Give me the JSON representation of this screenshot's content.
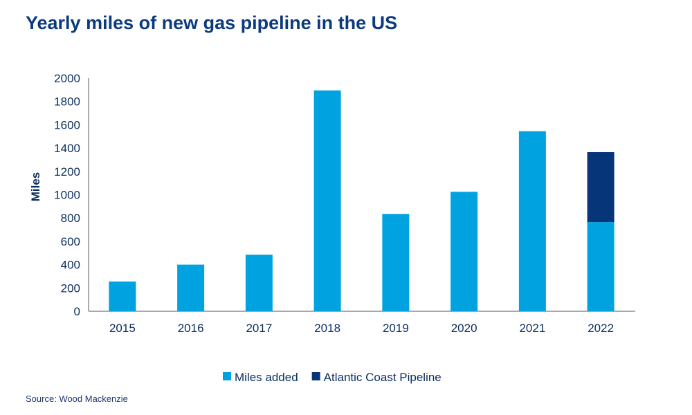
{
  "title": "Yearly miles of new gas pipeline in the US",
  "source": "Source: Wood Mackenzie",
  "chart_data": {
    "type": "bar",
    "stacked": true,
    "title": "Yearly miles of new gas pipeline in the US",
    "xlabel": "",
    "ylabel": "Miles",
    "ylim": [
      0,
      2000
    ],
    "yticks": [
      0,
      200,
      400,
      600,
      800,
      1000,
      1200,
      1400,
      1600,
      1800,
      2000
    ],
    "categories": [
      "2015",
      "2016",
      "2017",
      "2018",
      "2019",
      "2020",
      "2021",
      "2022"
    ],
    "series": [
      {
        "name": "Miles added",
        "color": "#00a3e0",
        "values": [
          255,
          400,
          485,
          1895,
          835,
          1025,
          1545,
          765
        ]
      },
      {
        "name": "Atlantic Coast Pipeline",
        "color": "#07357a",
        "values": [
          0,
          0,
          0,
          0,
          0,
          0,
          0,
          600
        ]
      }
    ],
    "grid": false,
    "legend": "bottom"
  }
}
